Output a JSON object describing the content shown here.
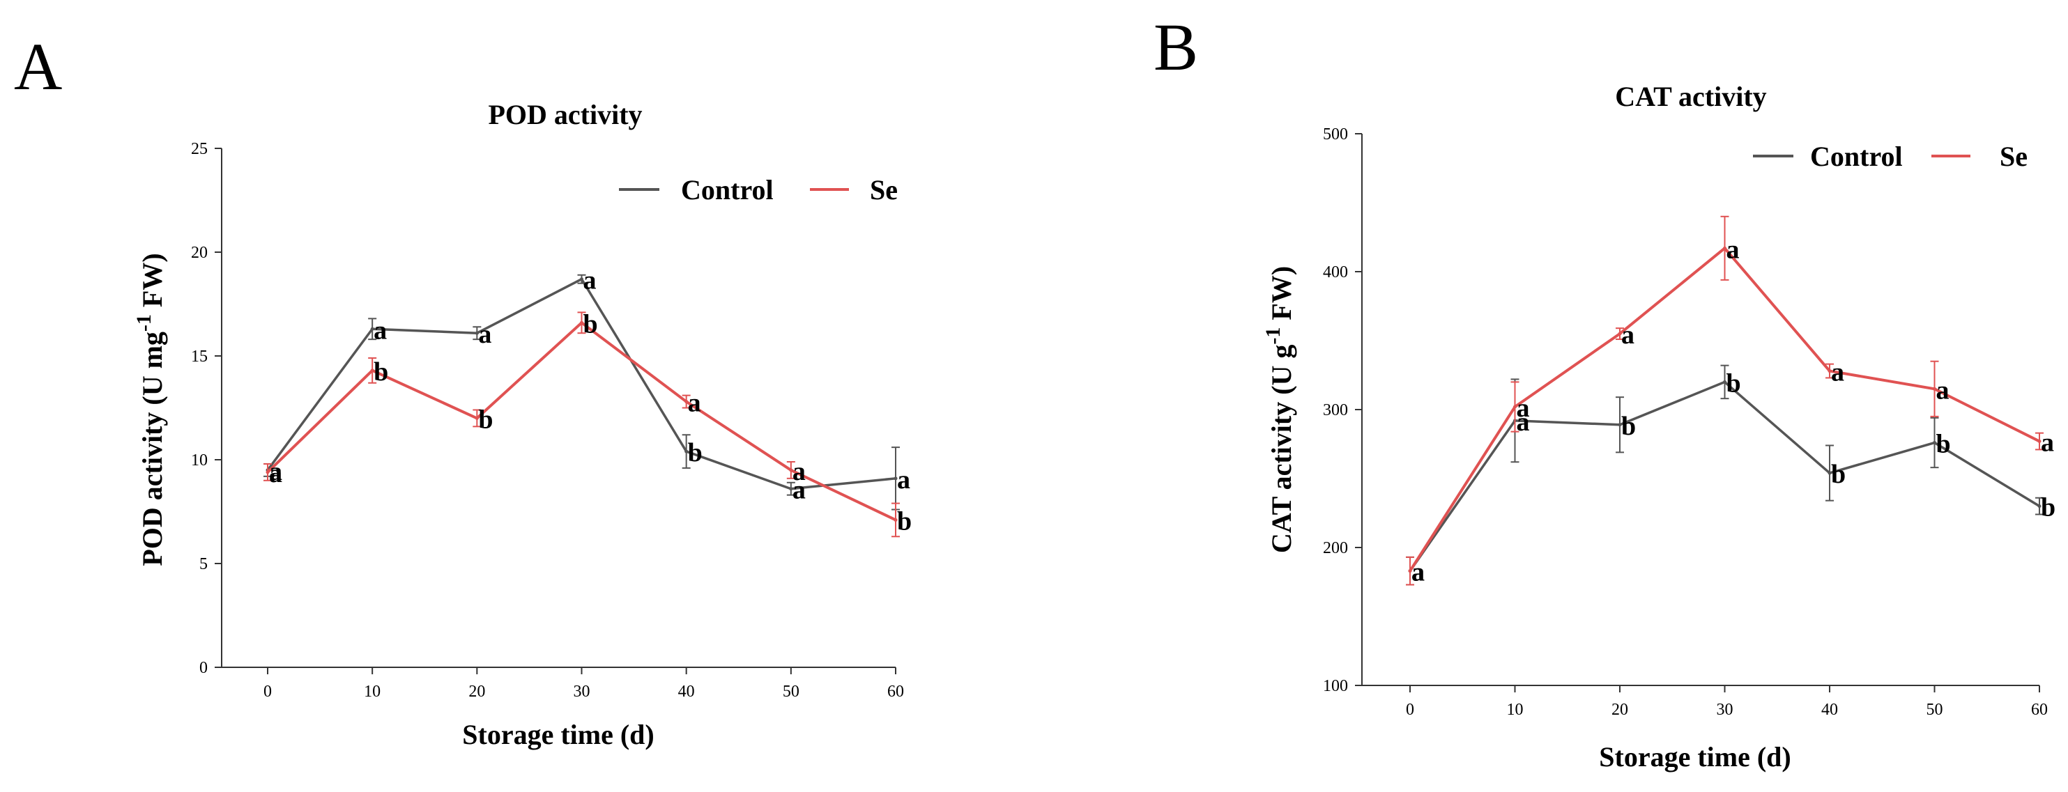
{
  "colors": {
    "control": "#555555",
    "se": "#e05252",
    "axis": "#333333",
    "text": "#000000"
  },
  "chart_data": [
    {
      "type": "line",
      "panel": "A",
      "title": "POD activity",
      "xlabel": "Storage time (d)",
      "ylabel_main": "POD activity (U mg",
      "ylabel_sup": "-1",
      "ylabel_end": " FW)",
      "x": [
        0,
        10,
        20,
        30,
        40,
        50,
        60
      ],
      "xticks": [
        "0",
        "10",
        "20",
        "30",
        "40",
        "50",
        "60"
      ],
      "ylim": [
        0,
        25
      ],
      "yticks": [
        0,
        5,
        10,
        15,
        20,
        25
      ],
      "legend": [
        "Control",
        "Se"
      ],
      "series": [
        {
          "name": "Control",
          "values": [
            9.5,
            16.3,
            16.1,
            18.7,
            10.4,
            8.6,
            9.1
          ],
          "errors": [
            0.3,
            0.5,
            0.3,
            0.2,
            0.8,
            0.3,
            1.5
          ],
          "labels": [
            "a",
            "a",
            "a",
            "a",
            "b",
            "a",
            "a"
          ]
        },
        {
          "name": "Se",
          "values": [
            9.4,
            14.3,
            12.0,
            16.6,
            12.8,
            9.5,
            7.1
          ],
          "errors": [
            0.4,
            0.6,
            0.4,
            0.5,
            0.3,
            0.4,
            0.8
          ],
          "labels": [
            "a",
            "b",
            "b",
            "b",
            "a",
            "a",
            "b"
          ]
        }
      ]
    },
    {
      "type": "line",
      "panel": "B",
      "title": "CAT activity",
      "xlabel": "Storage time (d)",
      "ylabel_main": "CAT activity (U g",
      "ylabel_sup": "-1",
      "ylabel_end": " FW)",
      "x": [
        0,
        10,
        20,
        30,
        40,
        50,
        60
      ],
      "xticks": [
        "0",
        "10",
        "20",
        "30",
        "40",
        "50",
        "60"
      ],
      "ylim": [
        100,
        500
      ],
      "yticks": [
        100,
        200,
        300,
        400,
        500
      ],
      "legend": [
        "Control",
        "Se"
      ],
      "series": [
        {
          "name": "Control",
          "values": [
            183,
            292,
            289,
            320,
            254,
            276,
            230
          ],
          "errors": [
            10,
            30,
            20,
            12,
            20,
            18,
            6
          ],
          "labels": [
            "a",
            "a",
            "b",
            "b",
            "b",
            "b",
            "b"
          ]
        },
        {
          "name": "Se",
          "values": [
            183,
            302,
            355,
            417,
            328,
            315,
            277
          ],
          "errors": [
            10,
            18,
            4,
            23,
            5,
            20,
            6
          ],
          "labels": [
            "a",
            "a",
            "a",
            "a",
            "a",
            "a",
            "a"
          ]
        }
      ]
    }
  ]
}
